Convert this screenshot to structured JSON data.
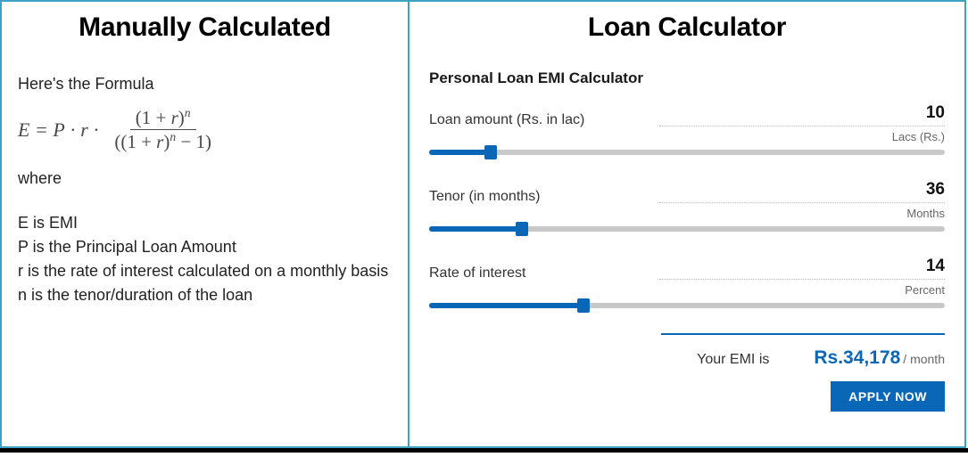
{
  "left": {
    "title": "Manually Calculated",
    "intro": "Here's the Formula",
    "formula": {
      "lhs": "E = P · r ·",
      "num": "(1 + r)ⁿ",
      "den": "((1 + r)ⁿ − 1)"
    },
    "where": "where",
    "def_e": "E is EMI",
    "def_p": "P is the Principal Loan Amount",
    "def_r": "r is the rate of interest calculated on a monthly basis",
    "def_n": "n is the tenor/duration of the loan"
  },
  "right": {
    "title": "Loan Calculator",
    "calc_title": "Personal Loan EMI Calculator",
    "sliders": {
      "amount": {
        "label": "Loan amount (Rs. in lac)",
        "value": "10",
        "unit": "Lacs (Rs.)",
        "fill_pct": 12
      },
      "tenor": {
        "label": "Tenor (in months)",
        "value": "36",
        "unit": "Months",
        "fill_pct": 18
      },
      "rate": {
        "label": "Rate of interest",
        "value": "14",
        "unit": "Percent",
        "fill_pct": 30
      }
    },
    "result": {
      "label": "Your EMI is",
      "value": "Rs.34,178",
      "suffix": "/ month"
    },
    "apply_label": "APPLY NOW"
  },
  "colors": {
    "border": "#3da3c4",
    "brand": "#0a66b7",
    "track": "#c9c9c9",
    "text": "#222222"
  }
}
